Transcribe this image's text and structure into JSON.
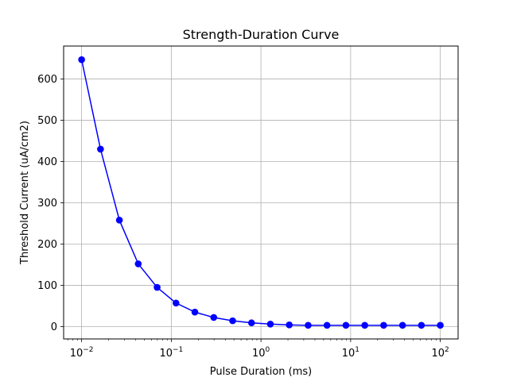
{
  "chart_data": {
    "type": "line",
    "title": "Strength-Duration Curve",
    "xlabel": "Pulse Duration (ms)",
    "ylabel": "Threshold Current (uA/cm2)",
    "xscale": "log",
    "xlim": [
      0.0063,
      158
    ],
    "ylim": [
      -30,
      680
    ],
    "x_ticks": [
      0.01,
      0.1,
      1,
      10,
      100
    ],
    "x_tick_exponents": [
      "-2",
      "-1",
      "0",
      "1",
      "2"
    ],
    "y_ticks": [
      0,
      100,
      200,
      300,
      400,
      500,
      600
    ],
    "y_tick_labels": [
      "0",
      "100",
      "200",
      "300",
      "400",
      "500",
      "600"
    ],
    "grid": true,
    "series": [
      {
        "color": "#0000ff",
        "marker": "circle",
        "x": [
          0.01,
          0.01624,
          0.02637,
          0.04281,
          0.06952,
          0.1129,
          0.1833,
          0.2976,
          0.4833,
          0.7848,
          1.274,
          2.069,
          3.36,
          5.456,
          8.859,
          14.38,
          23.36,
          37.93,
          61.58,
          100
        ],
        "y": [
          647,
          430,
          258,
          152,
          95,
          57,
          35,
          22,
          14,
          9,
          6,
          4,
          3,
          3,
          3,
          3,
          3,
          3,
          3,
          3
        ]
      }
    ]
  }
}
